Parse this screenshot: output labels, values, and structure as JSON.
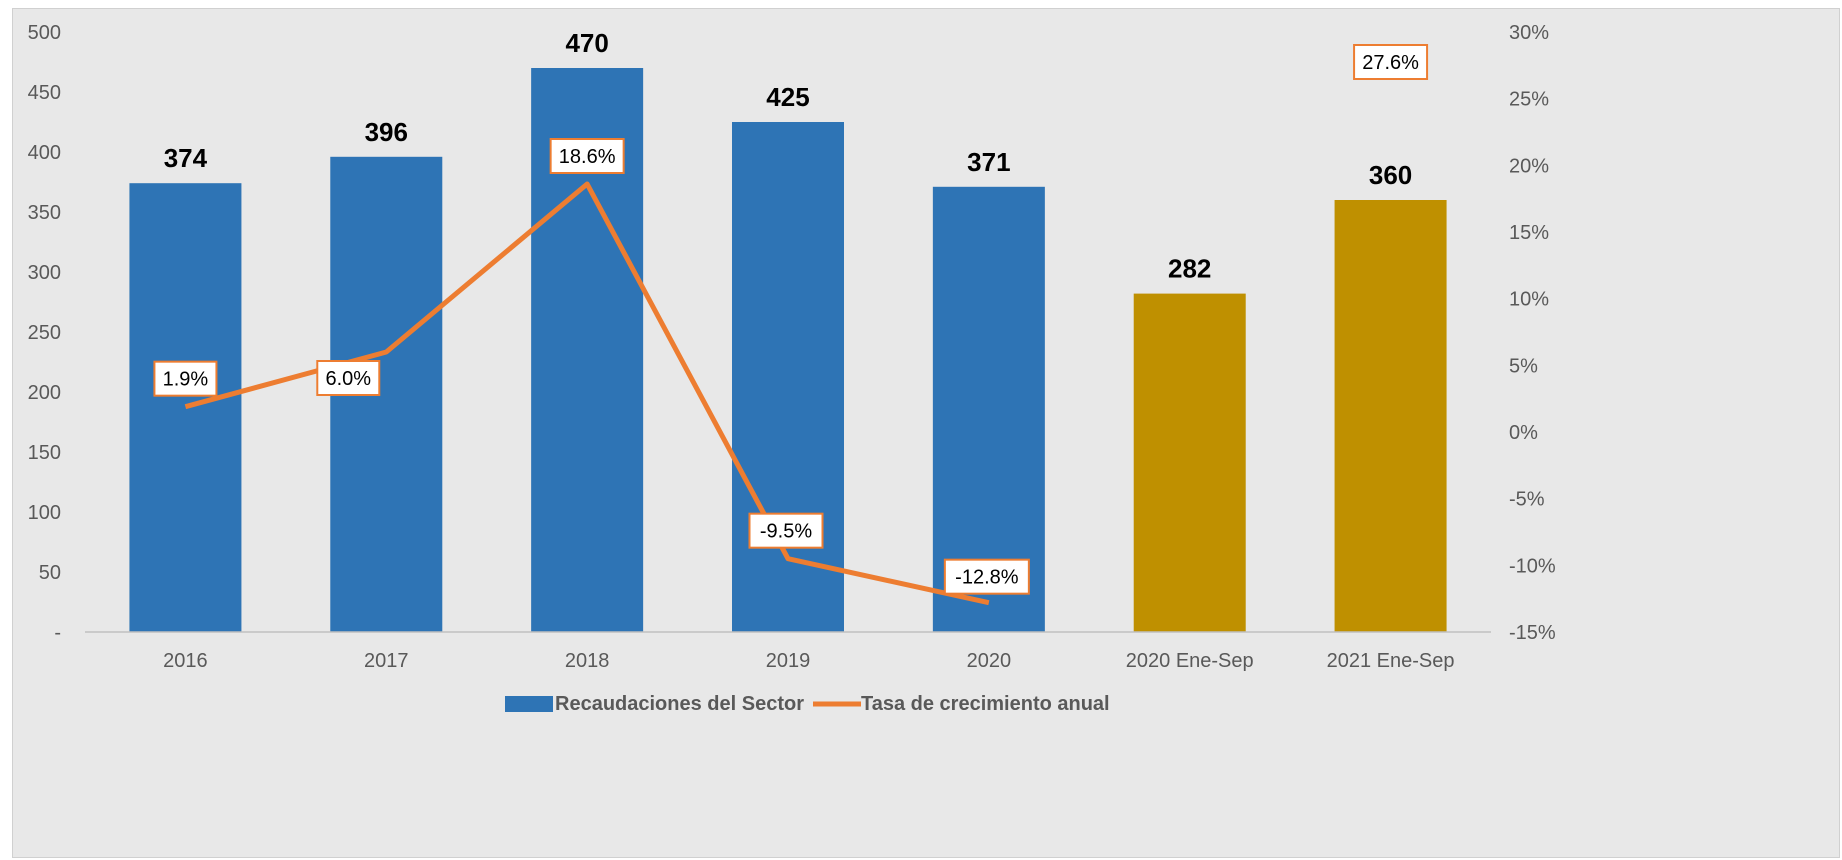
{
  "chart_data": {
    "type": "bar",
    "categories": [
      "2016",
      "2017",
      "2018",
      "2019",
      "2020",
      "2020 Ene-Sep",
      "2021 Ene-Sep"
    ],
    "series": [
      {
        "name": "Recaudaciones del Sector",
        "type": "bar",
        "axis": "left",
        "values": [
          374,
          396,
          470,
          425,
          371,
          282,
          360
        ],
        "labels": [
          "374",
          "396",
          "470",
          "425",
          "371",
          "282",
          "360"
        ],
        "colors": [
          "#2e74b5",
          "#2e74b5",
          "#2e74b5",
          "#2e74b5",
          "#2e74b5",
          "#bf9000",
          "#bf9000"
        ]
      },
      {
        "name": "Tasa de crecimiento anual",
        "type": "line",
        "axis": "right",
        "color": "#ed7d31",
        "points": [
          {
            "category": "2016",
            "value": 1.9,
            "label": "1.9%"
          },
          {
            "category": "2017",
            "value": 6.0,
            "label": "6.0%"
          },
          {
            "category": "2018",
            "value": 18.6,
            "label": "18.6%"
          },
          {
            "category": "2019",
            "value": -9.5,
            "label": "-9.5%"
          },
          {
            "category": "2020",
            "value": -12.8,
            "label": "-12.8%"
          }
        ],
        "extra_labels": [
          {
            "category": "2021 Ene-Sep",
            "value": 27.6,
            "label": "27.6%"
          }
        ]
      }
    ],
    "left_axis": {
      "ylim": [
        0,
        500
      ],
      "ticks": [
        0,
        50,
        100,
        150,
        200,
        250,
        300,
        350,
        400,
        450,
        500
      ],
      "tick_labels": [
        "-",
        "50",
        "100",
        "150",
        "200",
        "250",
        "300",
        "350",
        "400",
        "450",
        "500"
      ]
    },
    "right_axis": {
      "ylim": [
        -15,
        30
      ],
      "ticks": [
        -15,
        -10,
        -5,
        0,
        5,
        10,
        15,
        20,
        25,
        30
      ],
      "tick_labels": [
        "-15%",
        "-10%",
        "-5%",
        "0%",
        "5%",
        "10%",
        "15%",
        "20%",
        "25%",
        "30%"
      ]
    },
    "grid": false,
    "legend_position": "bottom-center",
    "background": "#e8e8e8"
  }
}
